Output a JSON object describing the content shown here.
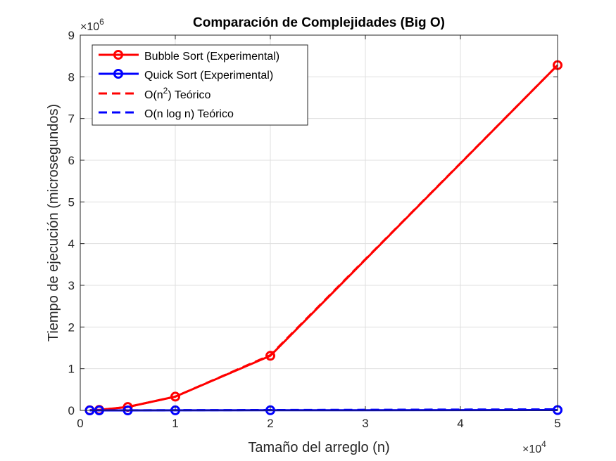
{
  "chart_data": {
    "type": "line",
    "title": "Comparación de Complejidades (Big O)",
    "xlabel": "Tamaño del arreglo (n)",
    "ylabel": "Tiempo de ejecución (microsegundos)",
    "x_multiplier": {
      "base": "×10",
      "exponent": "4"
    },
    "y_multiplier": {
      "base": "×10",
      "exponent": "6"
    },
    "x_scale_display": "piecewise — ticks 0–4 evenly spaced, then 5",
    "x_ticks": [
      {
        "value": 0,
        "label": "0"
      },
      {
        "value": 10000,
        "label": "1"
      },
      {
        "value": 20000,
        "label": "2"
      },
      {
        "value": 30000,
        "label": "3"
      },
      {
        "value": 40000,
        "label": "4"
      },
      {
        "value": 50000,
        "label": "5"
      }
    ],
    "y_ticks": [
      0,
      1,
      2,
      3,
      4,
      5,
      6,
      7,
      8,
      9
    ],
    "xlim": [
      0,
      50000
    ],
    "ylim": [
      0,
      9000000
    ],
    "grid": true,
    "legend_position": "top-left",
    "x": [
      1000,
      2000,
      5000,
      10000,
      20000,
      50000
    ],
    "series": [
      {
        "name": "Bubble Sort (Experimental)",
        "color": "#ff0000",
        "style": "solid",
        "marker": "circle",
        "values": [
          3000,
          13000,
          83000,
          330000,
          1310000,
          8280000
        ]
      },
      {
        "name": "Quick Sort (Experimental)",
        "color": "#0000ff",
        "style": "solid",
        "marker": "circle",
        "values": [
          100,
          200,
          600,
          1300,
          2900,
          8000
        ]
      },
      {
        "name": "O(n^2) Teórico",
        "color": "#ff0000",
        "style": "dashed",
        "marker": "none",
        "values": [
          3300,
          13200,
          82800,
          331000,
          1324000,
          8280000
        ]
      },
      {
        "name": "O(n log n) Teórico",
        "color": "#0000ff",
        "style": "dashed",
        "marker": "none",
        "values": [
          300,
          700,
          2000,
          4300,
          9200,
          25000
        ]
      }
    ]
  },
  "legend": [
    {
      "label": "Bubble Sort (Experimental)"
    },
    {
      "label": "Quick Sort (Experimental)"
    },
    {
      "label_prefix": "O(n",
      "label_sup": "2",
      "label_suffix": ") Teórico"
    },
    {
      "label": "O(n log n) Teórico"
    }
  ]
}
